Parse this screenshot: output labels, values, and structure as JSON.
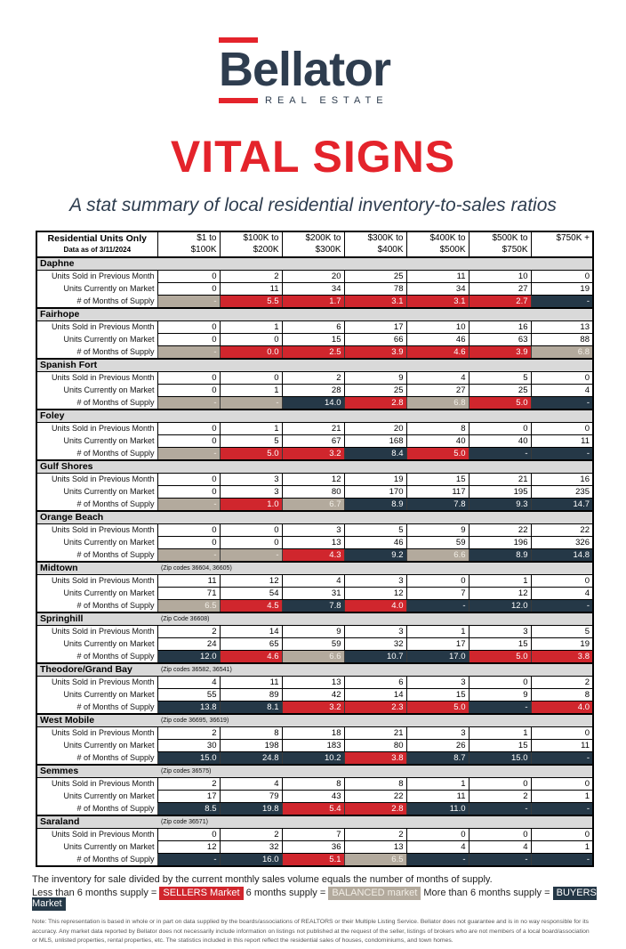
{
  "logo": {
    "brand": "Bellator",
    "tagline": "REAL ESTATE",
    "accent_color": "#e4232b",
    "brand_color": "#2e3d4f"
  },
  "title": "VITAL SIGNS",
  "subtitle": "A stat summary of local residential inventory-to-sales ratios",
  "colors": {
    "sellers_red": "#d0262d",
    "buyers_navy": "#253847",
    "balanced_tan": "#b3aa9d",
    "section_gray": "#d9d9d9"
  },
  "table": {
    "header": {
      "col0_line1": "Residential Units Only",
      "col0_line2": "Data as of 3/11/2024",
      "price_columns": [
        [
          "$1 to",
          "$100K"
        ],
        [
          "$100K to",
          "$200K"
        ],
        [
          "$200K to",
          "$300K"
        ],
        [
          "$300K to",
          "$400K"
        ],
        [
          "$400K to",
          "$500K"
        ],
        [
          "$500K to",
          "$750K"
        ],
        [
          "$750K +",
          ""
        ]
      ]
    },
    "row_labels": [
      "Units Sold in Previous Month",
      "Units Currently on Market",
      "# of Months of Supply"
    ],
    "sections": [
      {
        "name": "Daphne",
        "zip": "",
        "sold": [
          "0",
          "2",
          "20",
          "25",
          "11",
          "10",
          "0"
        ],
        "on_market": [
          "0",
          "11",
          "34",
          "78",
          "34",
          "27",
          "19"
        ],
        "supply": [
          {
            "v": "-",
            "c": "tan"
          },
          {
            "v": "5.5",
            "c": "red"
          },
          {
            "v": "1.7",
            "c": "red"
          },
          {
            "v": "3.1",
            "c": "red"
          },
          {
            "v": "3.1",
            "c": "red"
          },
          {
            "v": "2.7",
            "c": "red"
          },
          {
            "v": "-",
            "c": "navy"
          }
        ]
      },
      {
        "name": "Fairhope",
        "zip": "",
        "sold": [
          "0",
          "1",
          "6",
          "17",
          "10",
          "16",
          "13"
        ],
        "on_market": [
          "0",
          "0",
          "15",
          "66",
          "46",
          "63",
          "88"
        ],
        "supply": [
          {
            "v": "-",
            "c": "tan"
          },
          {
            "v": "0.0",
            "c": "red"
          },
          {
            "v": "2.5",
            "c": "red"
          },
          {
            "v": "3.9",
            "c": "red"
          },
          {
            "v": "4.6",
            "c": "red"
          },
          {
            "v": "3.9",
            "c": "red"
          },
          {
            "v": "6.8",
            "c": "tan"
          }
        ]
      },
      {
        "name": "Spanish Fort",
        "zip": "",
        "sold": [
          "0",
          "0",
          "2",
          "9",
          "4",
          "5",
          "0"
        ],
        "on_market": [
          "0",
          "1",
          "28",
          "25",
          "27",
          "25",
          "4"
        ],
        "supply": [
          {
            "v": "-",
            "c": "tan"
          },
          {
            "v": "-",
            "c": "tan"
          },
          {
            "v": "14.0",
            "c": "navy"
          },
          {
            "v": "2.8",
            "c": "red"
          },
          {
            "v": "6.8",
            "c": "tan"
          },
          {
            "v": "5.0",
            "c": "red"
          },
          {
            "v": "-",
            "c": "navy"
          }
        ]
      },
      {
        "name": "Foley",
        "zip": "",
        "sold": [
          "0",
          "1",
          "21",
          "20",
          "8",
          "0",
          "0"
        ],
        "on_market": [
          "0",
          "5",
          "67",
          "168",
          "40",
          "40",
          "11"
        ],
        "supply": [
          {
            "v": "-",
            "c": "tan"
          },
          {
            "v": "5.0",
            "c": "red"
          },
          {
            "v": "3.2",
            "c": "red"
          },
          {
            "v": "8.4",
            "c": "navy"
          },
          {
            "v": "5.0",
            "c": "red"
          },
          {
            "v": "-",
            "c": "navy"
          },
          {
            "v": "-",
            "c": "navy"
          }
        ]
      },
      {
        "name": "Gulf Shores",
        "zip": "",
        "sold": [
          "0",
          "3",
          "12",
          "19",
          "15",
          "21",
          "16"
        ],
        "on_market": [
          "0",
          "3",
          "80",
          "170",
          "117",
          "195",
          "235"
        ],
        "supply": [
          {
            "v": "-",
            "c": "tan"
          },
          {
            "v": "1.0",
            "c": "red"
          },
          {
            "v": "6.7",
            "c": "tan"
          },
          {
            "v": "8.9",
            "c": "navy"
          },
          {
            "v": "7.8",
            "c": "navy"
          },
          {
            "v": "9.3",
            "c": "navy"
          },
          {
            "v": "14.7",
            "c": "navy"
          }
        ]
      },
      {
        "name": "Orange Beach",
        "zip": "",
        "sold": [
          "0",
          "0",
          "3",
          "5",
          "9",
          "22",
          "22"
        ],
        "on_market": [
          "0",
          "0",
          "13",
          "46",
          "59",
          "196",
          "326"
        ],
        "supply": [
          {
            "v": "-",
            "c": "tan"
          },
          {
            "v": "-",
            "c": "tan"
          },
          {
            "v": "4.3",
            "c": "red"
          },
          {
            "v": "9.2",
            "c": "navy"
          },
          {
            "v": "6.6",
            "c": "tan"
          },
          {
            "v": "8.9",
            "c": "navy"
          },
          {
            "v": "14.8",
            "c": "navy"
          }
        ]
      },
      {
        "name": "Midtown",
        "zip": "(Zip codes 36604, 36605)",
        "sold": [
          "11",
          "12",
          "4",
          "3",
          "0",
          "1",
          "0"
        ],
        "on_market": [
          "71",
          "54",
          "31",
          "12",
          "7",
          "12",
          "4"
        ],
        "supply": [
          {
            "v": "6.5",
            "c": "tan"
          },
          {
            "v": "4.5",
            "c": "red"
          },
          {
            "v": "7.8",
            "c": "navy"
          },
          {
            "v": "4.0",
            "c": "red"
          },
          {
            "v": "-",
            "c": "navy"
          },
          {
            "v": "12.0",
            "c": "navy"
          },
          {
            "v": "-",
            "c": "navy"
          }
        ]
      },
      {
        "name": "Springhill",
        "zip": "(Zip Code 36608)",
        "sold": [
          "2",
          "14",
          "9",
          "3",
          "1",
          "3",
          "5"
        ],
        "on_market": [
          "24",
          "65",
          "59",
          "32",
          "17",
          "15",
          "19"
        ],
        "supply": [
          {
            "v": "12.0",
            "c": "navy"
          },
          {
            "v": "4.6",
            "c": "red"
          },
          {
            "v": "6.6",
            "c": "tan"
          },
          {
            "v": "10.7",
            "c": "navy"
          },
          {
            "v": "17.0",
            "c": "navy"
          },
          {
            "v": "5.0",
            "c": "red"
          },
          {
            "v": "3.8",
            "c": "red"
          }
        ]
      },
      {
        "name": "Theodore/Grand Bay",
        "zip": "(Zip codes 36582, 36541)",
        "sold": [
          "4",
          "11",
          "13",
          "6",
          "3",
          "0",
          "2"
        ],
        "on_market": [
          "55",
          "89",
          "42",
          "14",
          "15",
          "9",
          "8"
        ],
        "supply": [
          {
            "v": "13.8",
            "c": "navy"
          },
          {
            "v": "8.1",
            "c": "navy"
          },
          {
            "v": "3.2",
            "c": "red"
          },
          {
            "v": "2.3",
            "c": "red"
          },
          {
            "v": "5.0",
            "c": "red"
          },
          {
            "v": "-",
            "c": "navy"
          },
          {
            "v": "4.0",
            "c": "red"
          }
        ]
      },
      {
        "name": "West Mobile",
        "zip": "(Zip code 36695, 36619)",
        "sold": [
          "2",
          "8",
          "18",
          "21",
          "3",
          "1",
          "0"
        ],
        "on_market": [
          "30",
          "198",
          "183",
          "80",
          "26",
          "15",
          "11"
        ],
        "supply": [
          {
            "v": "15.0",
            "c": "navy"
          },
          {
            "v": "24.8",
            "c": "navy"
          },
          {
            "v": "10.2",
            "c": "navy"
          },
          {
            "v": "3.8",
            "c": "red"
          },
          {
            "v": "8.7",
            "c": "navy"
          },
          {
            "v": "15.0",
            "c": "navy"
          },
          {
            "v": "-",
            "c": "navy"
          }
        ]
      },
      {
        "name": "Semmes",
        "zip": "(Zip codes 36575)",
        "sold": [
          "2",
          "4",
          "8",
          "8",
          "1",
          "0",
          "0"
        ],
        "on_market": [
          "17",
          "79",
          "43",
          "22",
          "11",
          "2",
          "1"
        ],
        "supply": [
          {
            "v": "8.5",
            "c": "navy"
          },
          {
            "v": "19.8",
            "c": "navy"
          },
          {
            "v": "5.4",
            "c": "red"
          },
          {
            "v": "2.8",
            "c": "red"
          },
          {
            "v": "11.0",
            "c": "navy"
          },
          {
            "v": "-",
            "c": "navy"
          },
          {
            "v": "-",
            "c": "navy"
          }
        ]
      },
      {
        "name": "Saraland",
        "zip": "(Zip code 36571)",
        "sold": [
          "0",
          "2",
          "7",
          "2",
          "0",
          "0",
          "0"
        ],
        "on_market": [
          "12",
          "32",
          "36",
          "13",
          "4",
          "4",
          "1"
        ],
        "supply": [
          {
            "v": "-",
            "c": "navy"
          },
          {
            "v": "16.0",
            "c": "navy"
          },
          {
            "v": "5.1",
            "c": "red"
          },
          {
            "v": "6.5",
            "c": "tan"
          },
          {
            "v": "-",
            "c": "navy"
          },
          {
            "v": "-",
            "c": "navy"
          },
          {
            "v": "-",
            "c": "navy"
          }
        ]
      }
    ]
  },
  "legend": {
    "explain": "The inventory for sale divided by the current monthly sales volume equals the number of months of supply.",
    "sellers_prefix": "Less than 6 months supply =",
    "sellers_label": "SELLERS Market",
    "balanced_prefix": "6 months supply =",
    "balanced_label": "BALANCED market",
    "buyers_prefix": "More than 6 months supply =",
    "buyers_label": "BUYERS Market"
  },
  "note": "Note: This representation is based in whole or in part on data supplied by the boards/associations of REALTORS or their Multiple Listing Service. Bellator does not guarantee and is in no way responsible for its accuracy. Any market data reported by Bellator does not necessarily include information on listings not published at the request of the seller, listings of brokers who are not members of a local board/association or MLS, unlisted properties, rental properties, etc. The statistics included in this report reflect the residential sales of houses, condominiums, and town homes."
}
